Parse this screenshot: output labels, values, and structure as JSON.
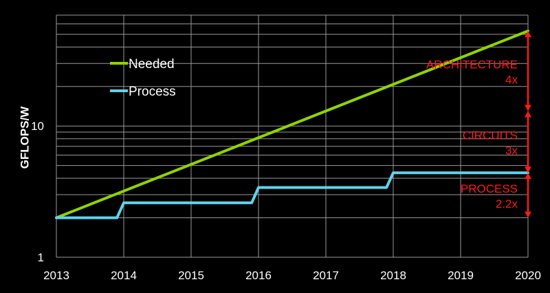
{
  "chart_data": {
    "type": "line",
    "y_scale": "log",
    "grid": true,
    "legend_position": "top-left",
    "ylabel": "GFLOPS/W",
    "xlabel": "",
    "xlim": [
      2013,
      2020
    ],
    "ylim": [
      1,
      70
    ],
    "x_ticks": [
      "2013",
      "2014",
      "2015",
      "2016",
      "2017",
      "2018",
      "2019",
      "2020"
    ],
    "y_ticks": [
      {
        "value": 1,
        "label": "1"
      },
      {
        "value": 10,
        "label": "10"
      }
    ],
    "series": [
      {
        "name": "Needed",
        "color": "#8fd400",
        "x": [
          2013,
          2020
        ],
        "y": [
          2,
          53
        ]
      },
      {
        "name": "Process",
        "color": "#5fd2ee",
        "x": [
          2013,
          2013.9,
          2014,
          2015.9,
          2016,
          2017.9,
          2018,
          2020
        ],
        "y": [
          2,
          2,
          2.6,
          2.6,
          3.4,
          3.4,
          4.4,
          4.4
        ]
      }
    ],
    "annotations": [
      {
        "label": "ARCHITECTURE",
        "factor": "4x",
        "y_from": 13,
        "y_to": 53,
        "color": "#ff1a1a"
      },
      {
        "label": "CIRCUITS",
        "factor": "3x",
        "y_from": 4.4,
        "y_to": 13,
        "color": "#ff1a1a"
      },
      {
        "label": "PROCESS",
        "factor": "2.2x",
        "y_from": 2,
        "y_to": 4.4,
        "color": "#ff1a1a"
      }
    ]
  }
}
